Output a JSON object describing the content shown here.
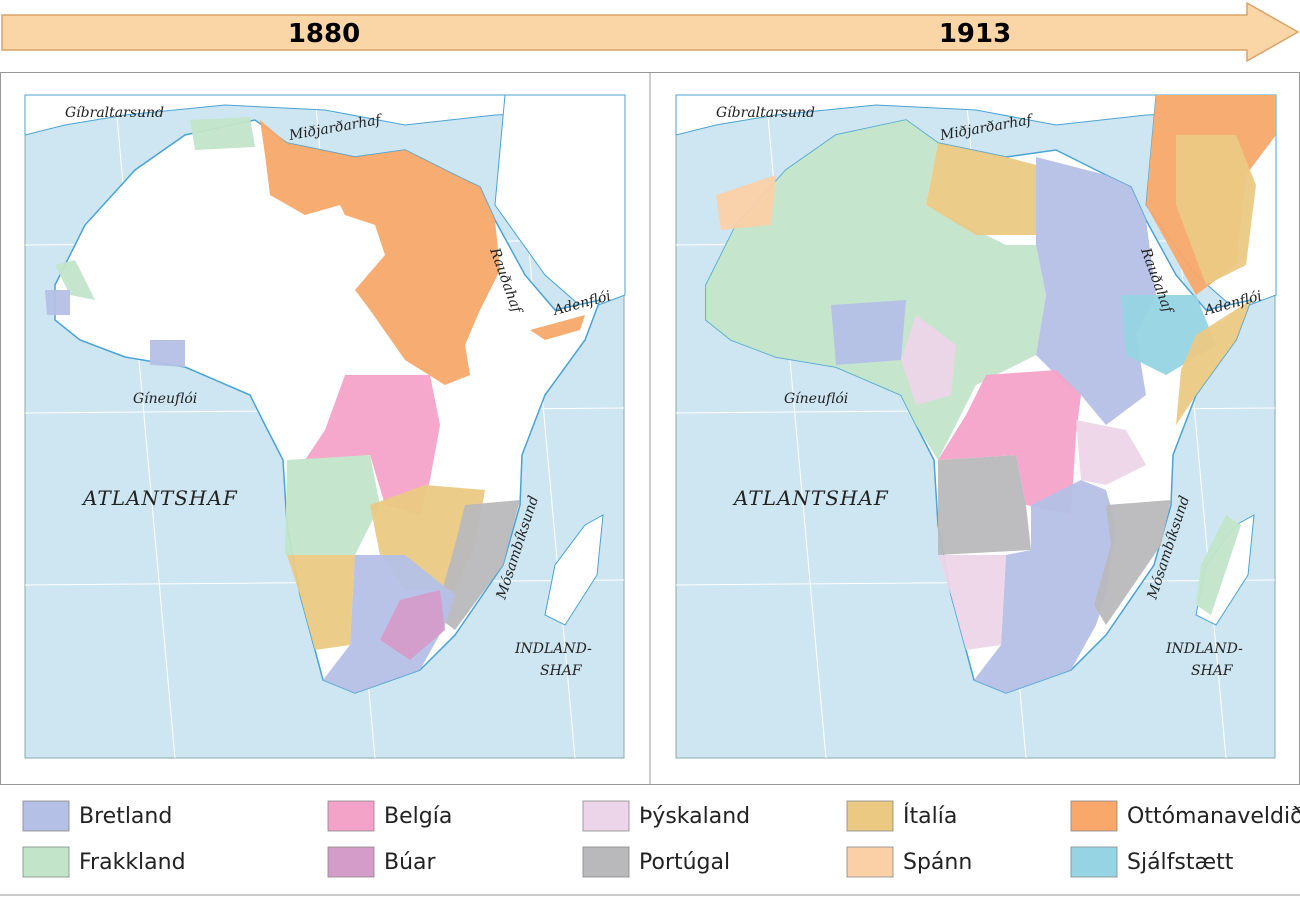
{
  "timeline": {
    "start": "1880",
    "end": "1913"
  },
  "map_labels": {
    "strait_gibraltar": "Gíbraltarsund",
    "mediterranean": "Miðjarðarhaf",
    "red_sea": "Rauðahaf",
    "gulf_aden": "Adenflói",
    "gulf_guinea": "Gíneuflói",
    "atlantic": "ATLANTSHAF",
    "mozambique_channel": "Mósambíksund",
    "indian_ocean_1": "INDLAND-",
    "indian_ocean_2": "SHAF"
  },
  "legend": [
    {
      "label": "Bretland",
      "color": "#b4c0e6"
    },
    {
      "label": "Frakkland",
      "color": "#c2e5c9"
    },
    {
      "label": "Belgía",
      "color": "#f4a3c8"
    },
    {
      "label": "Búar",
      "color": "#d49cc9"
    },
    {
      "label": "Þýskaland",
      "color": "#ecd5e8"
    },
    {
      "label": "Portúgal",
      "color": "#b9b9bc"
    },
    {
      "label": "Ítalía",
      "color": "#ebc983"
    },
    {
      "label": "Spánn",
      "color": "#fbd0a6"
    },
    {
      "label": "Ottómanaveldið",
      "color": "#f7a86a"
    },
    {
      "label": "Sjálfstætt",
      "color": "#96d4e4"
    }
  ]
}
